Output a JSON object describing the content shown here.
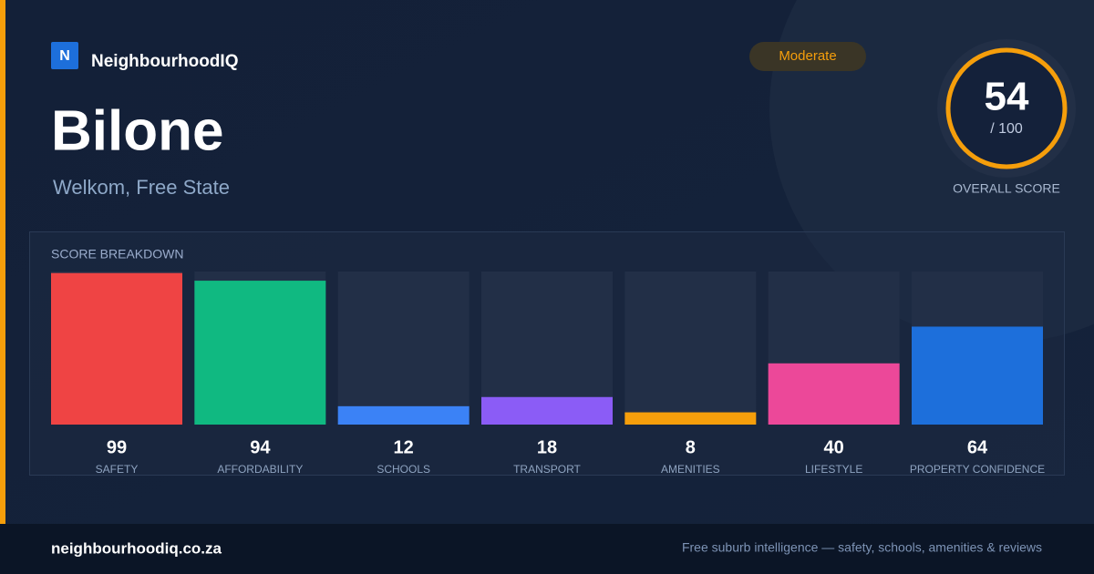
{
  "brand": "NeighbourhoodIQ",
  "brand_logo": "N",
  "title": "Bilone",
  "subtitle": "Welkom, Free State",
  "badge": "Moderate",
  "score": {
    "value": 54,
    "max_label": "/ 100",
    "label": "OVERALL SCORE"
  },
  "chart_data": {
    "type": "bar",
    "title": "SCORE BREAKDOWN",
    "categories": [
      "SAFETY",
      "AFFORDABILITY",
      "SCHOOLS",
      "TRANSPORT",
      "AMENITIES",
      "LIFESTYLE",
      "PROPERTY CONFIDENCE"
    ],
    "values": [
      99,
      94,
      12,
      18,
      8,
      40,
      64
    ],
    "colors": [
      "#ef4444",
      "#10b981",
      "#3b82f6",
      "#8b5cf6",
      "#f59e0b",
      "#ec4899",
      "#1d6fdb"
    ],
    "ylim": [
      0,
      100
    ]
  },
  "footer": {
    "site": "neighbourhoodiq.co.za",
    "tagline": "Free suburb intelligence — safety, schools, amenities & reviews"
  }
}
